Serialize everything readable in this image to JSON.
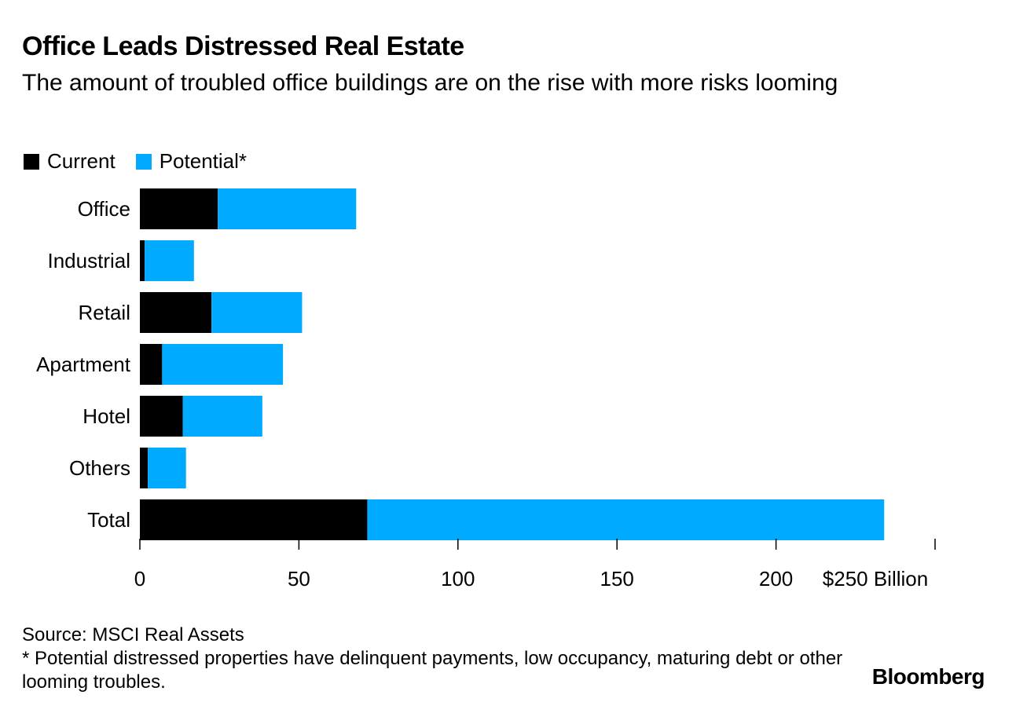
{
  "header": {
    "title": "Office Leads Distressed Real Estate",
    "subtitle": "The amount of troubled office buildings are on the rise with more risks looming"
  },
  "legend": {
    "current_label": "Current",
    "potential_label": "Potential*"
  },
  "colors": {
    "current": "#000000",
    "potential": "#00aaff",
    "axis": "#000000"
  },
  "chart_data": {
    "type": "bar",
    "orientation": "horizontal",
    "stacked": true,
    "title": "Office Leads Distressed Real Estate",
    "categories": [
      "Office",
      "Industrial",
      "Retail",
      "Apartment",
      "Hotel",
      "Others",
      "Total"
    ],
    "series": [
      {
        "name": "Current",
        "values": [
          24.5,
          1.5,
          22.5,
          7,
          13.5,
          2.5,
          71.5
        ]
      },
      {
        "name": "Potential*",
        "values": [
          43.5,
          15.5,
          28.5,
          38,
          25,
          12,
          162.5
        ]
      }
    ],
    "xlim": [
      0,
      250
    ],
    "xticks": [
      0,
      50,
      100,
      150,
      200,
      250
    ],
    "xtick_labels": [
      "0",
      "50",
      "100",
      "150",
      "200",
      "$250 Billion"
    ],
    "xlabel": "",
    "ylabel": "",
    "grid": false,
    "legend_position": "top-left"
  },
  "footer": {
    "source": "Source: MSCI Real Assets",
    "note": "* Potential distressed properties have delinquent payments, low occupancy, maturing debt or other looming troubles.",
    "brand": "Bloomberg"
  }
}
